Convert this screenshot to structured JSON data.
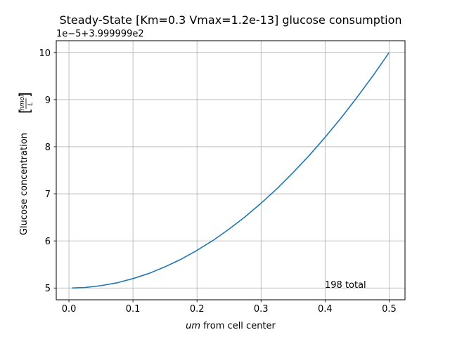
{
  "chart_data": {
    "type": "line",
    "title": "Steady-State [Km=0.3 Vmax=1.2e-13] glucose consumption",
    "offset_label": "1e−5+3.999999e2",
    "xlabel_italic": "um",
    "xlabel_rest": " from cell center",
    "ylabel_text": "Glucose concentration ",
    "ylabel_unit_num": "mmol",
    "ylabel_unit_den": "L",
    "annotation": "198 total",
    "grid": true,
    "xlim": [
      -0.0198,
      0.5248
    ],
    "ylim": [
      4.75,
      10.25
    ],
    "xticks": [
      0.0,
      0.1,
      0.2,
      0.3,
      0.4,
      0.5
    ],
    "xtick_labels": [
      "0.0",
      "0.1",
      "0.2",
      "0.3",
      "0.4",
      "0.5"
    ],
    "yticks": [
      5,
      6,
      7,
      8,
      9,
      10
    ],
    "ytick_labels": [
      "5",
      "6",
      "7",
      "8",
      "9",
      "10"
    ],
    "line_color": "#1f77b4",
    "series": [
      {
        "x": [
          0.005,
          0.025,
          0.05,
          0.075,
          0.1,
          0.125,
          0.15,
          0.175,
          0.2,
          0.225,
          0.25,
          0.275,
          0.3,
          0.325,
          0.35,
          0.375,
          0.4,
          0.425,
          0.45,
          0.475,
          0.5
        ],
        "y": [
          5.0,
          5.01,
          5.05,
          5.11,
          5.2,
          5.31,
          5.45,
          5.61,
          5.8,
          6.01,
          6.25,
          6.51,
          6.8,
          7.11,
          7.45,
          7.81,
          8.2,
          8.61,
          9.05,
          9.51,
          10.0
        ]
      }
    ]
  }
}
